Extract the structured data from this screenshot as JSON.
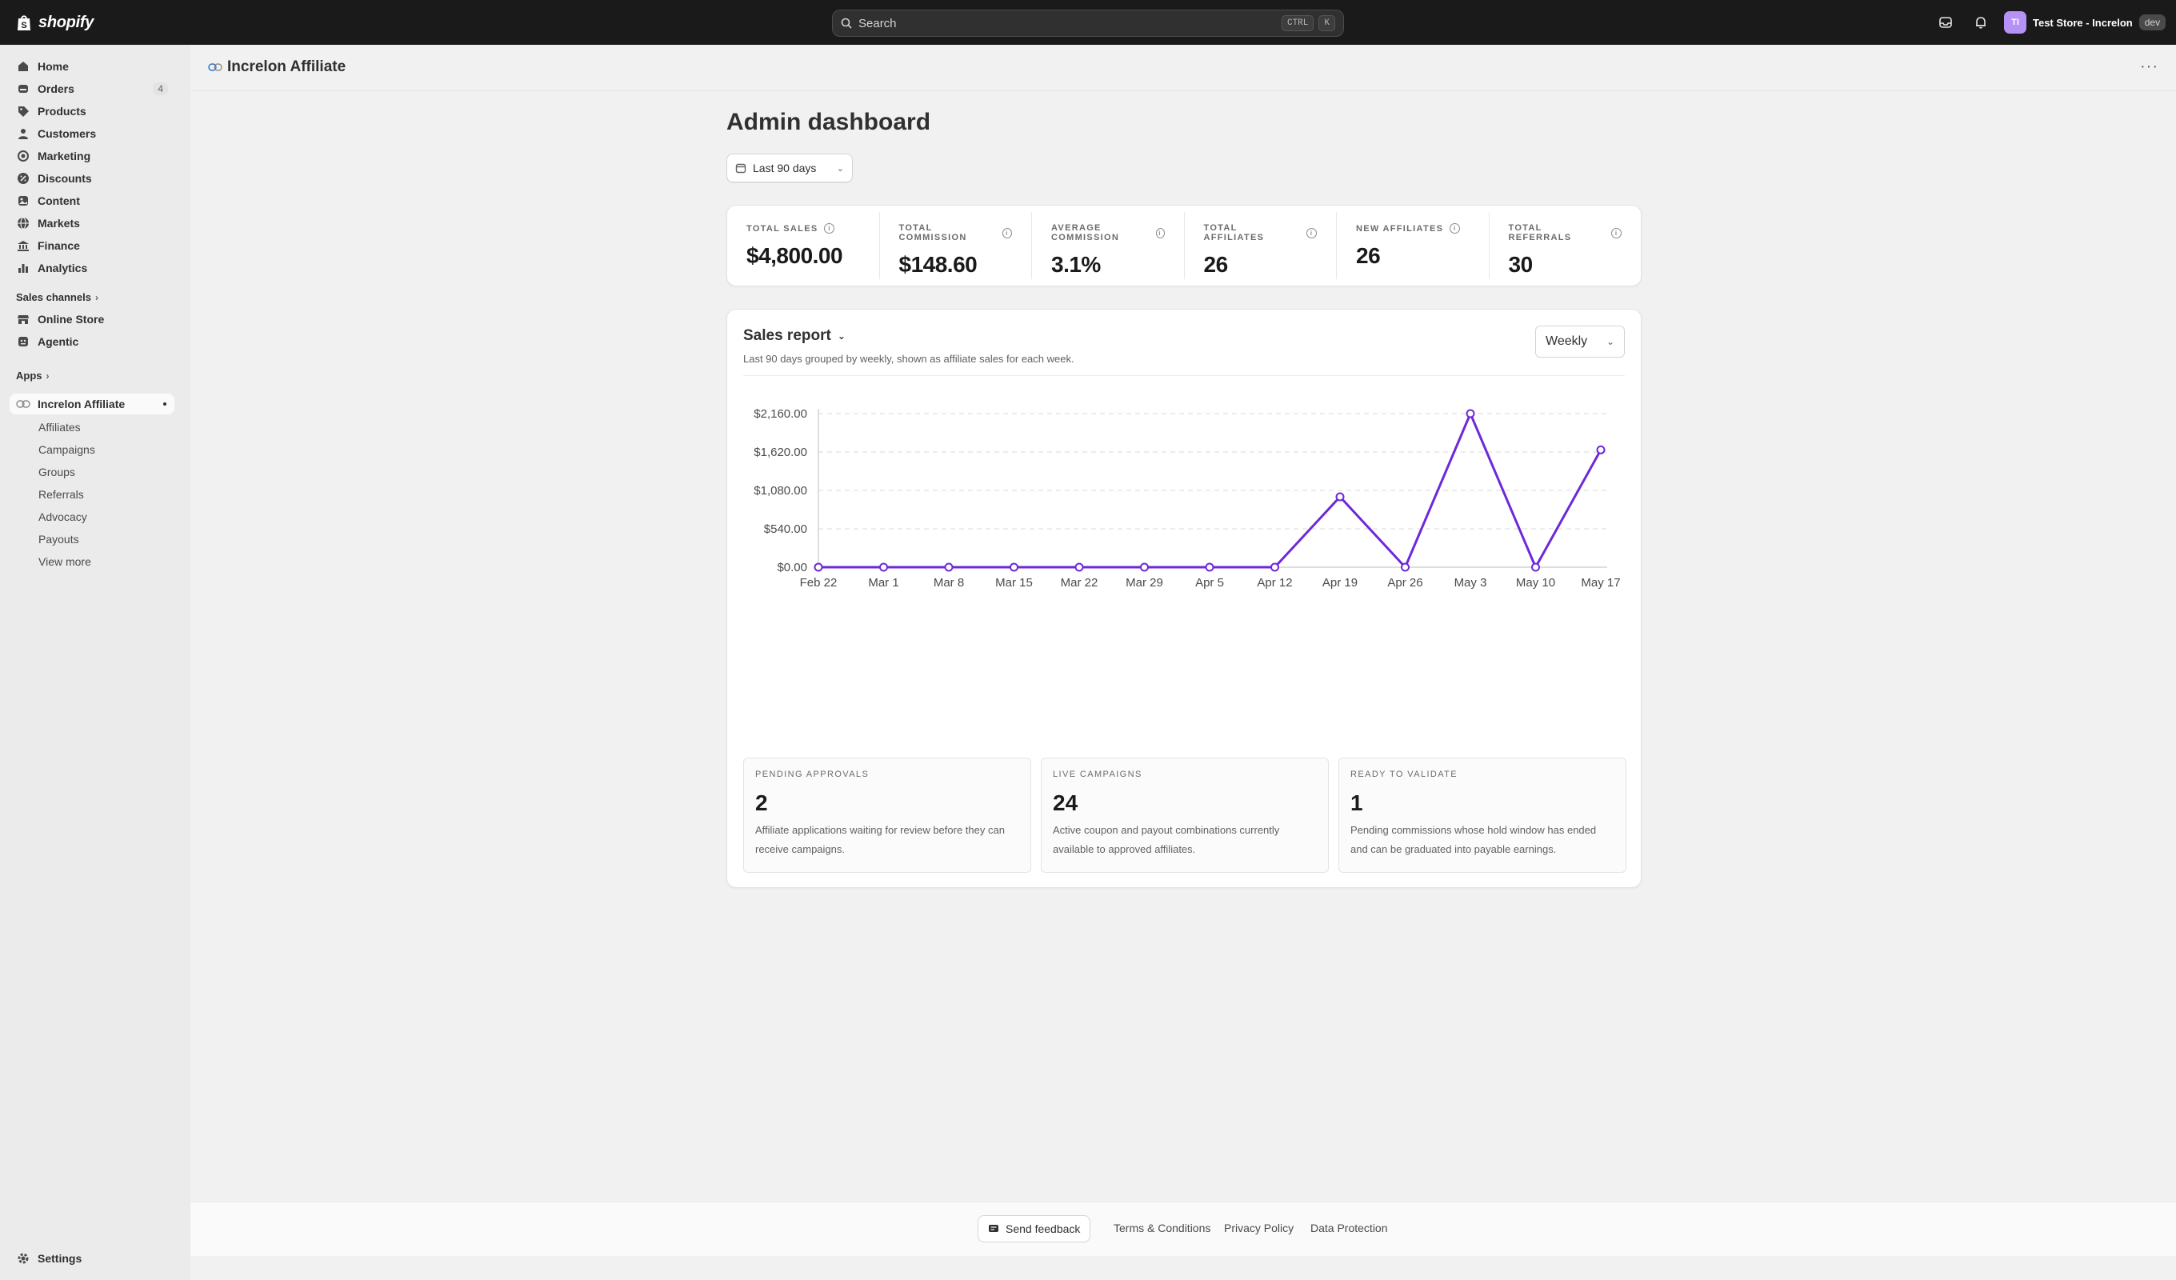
{
  "topbar": {
    "brand": "shopify",
    "search_placeholder": "Search",
    "shortcut_ctrl": "CTRL",
    "shortcut_key": "K",
    "store_initials": "TI",
    "store_name": "Test Store - Increlon",
    "store_badge": "dev"
  },
  "sidebar": {
    "items": [
      {
        "label": "Home",
        "icon": "home-icon"
      },
      {
        "label": "Orders",
        "icon": "orders-icon",
        "count": "4"
      },
      {
        "label": "Products",
        "icon": "tag-icon"
      },
      {
        "label": "Customers",
        "icon": "person-icon"
      },
      {
        "label": "Marketing",
        "icon": "target-icon"
      },
      {
        "label": "Discounts",
        "icon": "discount-icon"
      },
      {
        "label": "Content",
        "icon": "content-icon"
      },
      {
        "label": "Markets",
        "icon": "globe-icon"
      },
      {
        "label": "Finance",
        "icon": "bank-icon"
      },
      {
        "label": "Analytics",
        "icon": "bar-chart-icon"
      }
    ],
    "sales_channels_label": "Sales channels",
    "channels": [
      {
        "label": "Online Store",
        "icon": "store-icon"
      },
      {
        "label": "Agentic",
        "icon": "agentic-icon"
      }
    ],
    "apps_label": "Apps",
    "app_label": "Increlon Affiliate",
    "app_sub_items": [
      "Affiliates",
      "Campaigns",
      "Groups",
      "Referrals",
      "Advocacy",
      "Payouts",
      "View more"
    ],
    "settings_label": "Settings"
  },
  "app_header": {
    "title": "Increlon Affiliate",
    "more_label": "···"
  },
  "page": {
    "title": "Admin dashboard",
    "date_range": "Last 90 days"
  },
  "kpis": [
    {
      "label": "TOTAL SALES",
      "value": "$4,800.00"
    },
    {
      "label": "TOTAL COMMISSION",
      "value": "$148.60"
    },
    {
      "label": "AVERAGE COMMISSION",
      "value": "3.1%"
    },
    {
      "label": "TOTAL AFFILIATES",
      "value": "26"
    },
    {
      "label": "NEW AFFILIATES",
      "value": "26"
    },
    {
      "label": "TOTAL REFERRALS",
      "value": "30"
    }
  ],
  "report": {
    "title": "Sales report",
    "subtitle": "Last 90 days grouped by weekly, shown as affiliate sales for each week.",
    "period": "Weekly"
  },
  "chart_data": {
    "type": "line",
    "title": "",
    "categories": [
      "Feb 22",
      "Mar 1",
      "Mar 8",
      "Mar 15",
      "Mar 22",
      "Mar 29",
      "Apr 5",
      "Apr 12",
      "Apr 19",
      "Apr 26",
      "May 3",
      "May 10",
      "May 17"
    ],
    "series": [
      {
        "values": [
          0,
          0,
          0,
          0,
          0,
          0,
          0,
          0,
          990,
          0,
          2160,
          0,
          1650
        ]
      }
    ],
    "y_ticks": [
      0,
      540,
      1080,
      1620,
      2160
    ],
    "y_tick_labels": [
      "$0.00",
      "$540.00",
      "$1,080.00",
      "$1,620.00",
      "$2,160.00"
    ],
    "ylim": [
      0,
      2160
    ],
    "grid": true,
    "color": "#6d28d9"
  },
  "stats": [
    {
      "label": "PENDING APPROVALS",
      "value": "2",
      "description": "Affiliate applications waiting for review before they can receive campaigns."
    },
    {
      "label": "LIVE CAMPAIGNS",
      "value": "24",
      "description": "Active coupon and payout combinations currently available to approved affiliates."
    },
    {
      "label": "READY TO VALIDATE",
      "value": "1",
      "description": "Pending commissions whose hold window has ended and can be graduated into payable earnings."
    }
  ],
  "footer": {
    "feedback": "Send feedback",
    "links": [
      "Terms & Conditions",
      "Privacy Policy",
      "Data Protection"
    ]
  }
}
